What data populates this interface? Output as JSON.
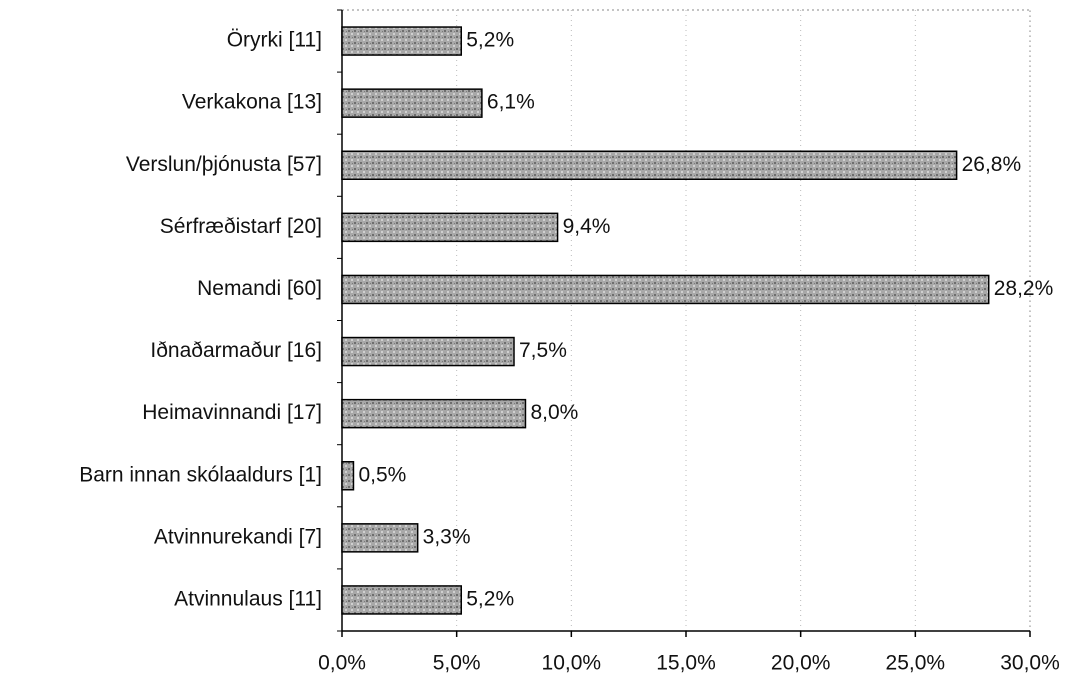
{
  "chart_data": {
    "type": "bar",
    "orientation": "horizontal",
    "categories": [
      "Öryrki [11]",
      "Verkakona [13]",
      "Verslun/þjónusta [57]",
      "Sérfræðistarf [20]",
      "Nemandi [60]",
      "Iðnaðarmaður [16]",
      "Heimavinnandi [17]",
      "Barn innan skólaaldurs [1]",
      "Atvinnurekandi [7]",
      "Atvinnulaus [11]"
    ],
    "values": [
      5.2,
      6.1,
      26.8,
      9.4,
      28.2,
      7.5,
      8.0,
      0.5,
      3.3,
      5.2
    ],
    "value_labels": [
      "5,2%",
      "6,1%",
      "26,8%",
      "9,4%",
      "28,2%",
      "7,5%",
      "8,0%",
      "0,5%",
      "3,3%",
      "5,2%"
    ],
    "color": "#9c9c9c",
    "xlim": [
      0,
      30
    ],
    "xticks": [
      {
        "value": 0,
        "label": "0,0%"
      },
      {
        "value": 5,
        "label": "5,0%"
      },
      {
        "value": 10,
        "label": "10,0%"
      },
      {
        "value": 15,
        "label": "15,0%"
      },
      {
        "value": 20,
        "label": "20,0%"
      },
      {
        "value": 25,
        "label": "25,0%"
      },
      {
        "value": 30,
        "label": "30,0%"
      }
    ],
    "grid": true
  }
}
